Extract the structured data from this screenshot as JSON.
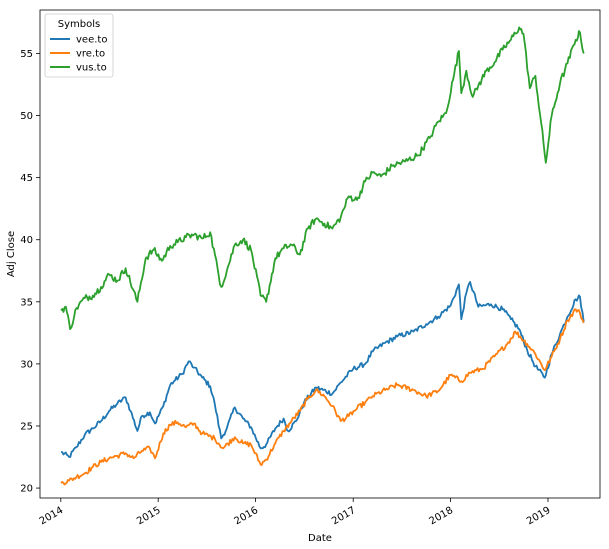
{
  "chart_data": {
    "type": "line",
    "xlabel": "Date",
    "ylabel": "Adj Close",
    "xlim": [
      "2013-10-15",
      "2019-07-15"
    ],
    "ylim": [
      19.2,
      58.5
    ],
    "x_ticks": [
      "2014",
      "2015",
      "2016",
      "2017",
      "2018",
      "2019"
    ],
    "y_ticks": [
      20,
      25,
      30,
      35,
      40,
      45,
      50,
      55
    ],
    "grid": false,
    "legend": {
      "title": "Symbols",
      "position": "top-left"
    },
    "series": [
      {
        "name": "vee.to",
        "color": "#1f77b4",
        "points": [
          [
            "2014-01-02",
            22.9
          ],
          [
            "2014-02-01",
            22.5
          ],
          [
            "2014-03-01",
            23.3
          ],
          [
            "2014-04-01",
            24.3
          ],
          [
            "2014-05-01",
            24.8
          ],
          [
            "2014-06-01",
            25.4
          ],
          [
            "2014-07-01",
            26.2
          ],
          [
            "2014-08-01",
            26.8
          ],
          [
            "2014-09-01",
            27.3
          ],
          [
            "2014-09-20",
            26.2
          ],
          [
            "2014-10-15",
            24.6
          ],
          [
            "2014-11-01",
            25.8
          ],
          [
            "2014-12-01",
            26.1
          ],
          [
            "2014-12-20",
            25.2
          ],
          [
            "2015-01-20",
            26.6
          ],
          [
            "2015-02-15",
            28.3
          ],
          [
            "2015-03-01",
            28.6
          ],
          [
            "2015-04-01",
            29.2
          ],
          [
            "2015-04-25",
            30.2
          ],
          [
            "2015-05-15",
            29.7
          ],
          [
            "2015-06-15",
            28.9
          ],
          [
            "2015-07-15",
            28.2
          ],
          [
            "2015-08-01",
            26.8
          ],
          [
            "2015-08-25",
            24.0
          ],
          [
            "2015-09-15",
            24.8
          ],
          [
            "2015-10-15",
            26.5
          ],
          [
            "2015-11-15",
            25.6
          ],
          [
            "2015-12-15",
            24.9
          ],
          [
            "2016-01-20",
            23.2
          ],
          [
            "2016-02-10",
            23.5
          ],
          [
            "2016-03-15",
            24.8
          ],
          [
            "2016-04-15",
            25.6
          ],
          [
            "2016-05-01",
            24.6
          ],
          [
            "2016-06-01",
            25.4
          ],
          [
            "2016-07-01",
            26.9
          ],
          [
            "2016-08-15",
            28.1
          ],
          [
            "2016-10-15",
            27.6
          ],
          [
            "2016-11-15",
            28.5
          ],
          [
            "2017-01-01",
            29.6
          ],
          [
            "2017-02-15",
            30.0
          ],
          [
            "2017-03-15",
            31.0
          ],
          [
            "2017-05-01",
            31.7
          ],
          [
            "2017-06-15",
            32.2
          ],
          [
            "2017-08-15",
            32.6
          ],
          [
            "2017-10-01",
            33.2
          ],
          [
            "2017-11-15",
            33.8
          ],
          [
            "2018-01-01",
            34.7
          ],
          [
            "2018-02-01",
            36.4
          ],
          [
            "2018-02-10",
            33.6
          ],
          [
            "2018-03-01",
            35.7
          ],
          [
            "2018-03-15",
            36.6
          ],
          [
            "2018-04-15",
            34.6
          ],
          [
            "2018-06-01",
            34.8
          ],
          [
            "2018-07-15",
            34.4
          ],
          [
            "2018-08-15",
            33.6
          ],
          [
            "2018-09-15",
            32.8
          ],
          [
            "2018-10-15",
            31.1
          ],
          [
            "2018-11-15",
            29.8
          ],
          [
            "2018-12-20",
            28.9
          ],
          [
            "2019-01-15",
            30.8
          ],
          [
            "2019-02-15",
            32.4
          ],
          [
            "2019-03-15",
            33.8
          ],
          [
            "2019-04-15",
            35.2
          ],
          [
            "2019-05-01",
            35.4
          ],
          [
            "2019-05-15",
            33.4
          ]
        ]
      },
      {
        "name": "vre.to",
        "color": "#ff7f0e",
        "points": [
          [
            "2014-01-02",
            20.4
          ],
          [
            "2014-02-01",
            20.6
          ],
          [
            "2014-03-01",
            20.9
          ],
          [
            "2014-04-01",
            21.2
          ],
          [
            "2014-05-01",
            21.7
          ],
          [
            "2014-06-01",
            22.1
          ],
          [
            "2014-07-01",
            22.4
          ],
          [
            "2014-08-01",
            22.6
          ],
          [
            "2014-09-01",
            22.8
          ],
          [
            "2014-10-01",
            22.4
          ],
          [
            "2014-11-01",
            23.0
          ],
          [
            "2014-12-01",
            23.2
          ],
          [
            "2014-12-20",
            22.4
          ],
          [
            "2015-01-20",
            24.4
          ],
          [
            "2015-02-15",
            25.1
          ],
          [
            "2015-03-15",
            25.3
          ],
          [
            "2015-04-15",
            24.9
          ],
          [
            "2015-05-15",
            25.2
          ],
          [
            "2015-06-15",
            24.4
          ],
          [
            "2015-08-01",
            24.0
          ],
          [
            "2015-09-01",
            23.2
          ],
          [
            "2015-10-15",
            24.1
          ],
          [
            "2015-11-15",
            23.6
          ],
          [
            "2015-12-15",
            23.5
          ],
          [
            "2016-01-20",
            21.9
          ],
          [
            "2016-02-10",
            22.3
          ],
          [
            "2016-03-15",
            23.6
          ],
          [
            "2016-04-15",
            24.6
          ],
          [
            "2016-05-15",
            25.4
          ],
          [
            "2016-06-15",
            26.2
          ],
          [
            "2016-07-15",
            27.2
          ],
          [
            "2016-08-15",
            27.9
          ],
          [
            "2016-09-15",
            27.4
          ],
          [
            "2016-10-15",
            26.6
          ],
          [
            "2016-11-15",
            25.4
          ],
          [
            "2016-12-15",
            25.8
          ],
          [
            "2017-01-15",
            26.4
          ],
          [
            "2017-02-15",
            26.9
          ],
          [
            "2017-03-15",
            27.4
          ],
          [
            "2017-05-01",
            27.9
          ],
          [
            "2017-06-15",
            28.3
          ],
          [
            "2017-08-15",
            27.9
          ],
          [
            "2017-10-01",
            27.4
          ],
          [
            "2017-11-15",
            27.8
          ],
          [
            "2018-01-01",
            29.1
          ],
          [
            "2018-02-10",
            28.6
          ],
          [
            "2018-03-15",
            29.3
          ],
          [
            "2018-05-01",
            29.6
          ],
          [
            "2018-06-15",
            30.6
          ],
          [
            "2018-08-01",
            31.6
          ],
          [
            "2018-09-01",
            32.6
          ],
          [
            "2018-10-15",
            31.6
          ],
          [
            "2018-11-15",
            30.8
          ],
          [
            "2018-12-20",
            29.5
          ],
          [
            "2019-01-15",
            30.6
          ],
          [
            "2019-02-15",
            32.0
          ],
          [
            "2019-03-15",
            33.5
          ],
          [
            "2019-04-15",
            34.4
          ],
          [
            "2019-05-01",
            34.1
          ],
          [
            "2019-05-15",
            33.3
          ]
        ]
      },
      {
        "name": "vus.to",
        "color": "#2ca02c",
        "points": [
          [
            "2014-01-02",
            34.3
          ],
          [
            "2014-01-20",
            34.6
          ],
          [
            "2014-02-05",
            32.8
          ],
          [
            "2014-03-01",
            34.5
          ],
          [
            "2014-04-01",
            35.3
          ],
          [
            "2014-05-01",
            35.5
          ],
          [
            "2014-06-01",
            36.2
          ],
          [
            "2014-07-01",
            37.2
          ],
          [
            "2014-08-01",
            36.7
          ],
          [
            "2014-09-01",
            37.7
          ],
          [
            "2014-10-15",
            35.0
          ],
          [
            "2014-11-15",
            38.5
          ],
          [
            "2014-12-15",
            39.2
          ],
          [
            "2015-01-15",
            38.3
          ],
          [
            "2015-02-15",
            39.5
          ],
          [
            "2015-03-15",
            39.8
          ],
          [
            "2015-04-15",
            40.2
          ],
          [
            "2015-05-15",
            40.4
          ],
          [
            "2015-06-15",
            40.1
          ],
          [
            "2015-07-15",
            40.6
          ],
          [
            "2015-08-25",
            36.2
          ],
          [
            "2015-09-15",
            37.5
          ],
          [
            "2015-10-15",
            39.6
          ],
          [
            "2015-11-15",
            40.0
          ],
          [
            "2015-12-15",
            39.2
          ],
          [
            "2016-01-20",
            35.5
          ],
          [
            "2016-02-10",
            35.0
          ],
          [
            "2016-03-15",
            38.5
          ],
          [
            "2016-04-15",
            39.3
          ],
          [
            "2016-05-15",
            39.6
          ],
          [
            "2016-06-15",
            38.8
          ],
          [
            "2016-07-15",
            40.9
          ],
          [
            "2016-08-15",
            41.7
          ],
          [
            "2016-09-15",
            41.3
          ],
          [
            "2016-10-15",
            40.9
          ],
          [
            "2016-11-15",
            41.8
          ],
          [
            "2016-12-15",
            43.5
          ],
          [
            "2017-01-15",
            43.2
          ],
          [
            "2017-02-15",
            44.7
          ],
          [
            "2017-03-15",
            45.4
          ],
          [
            "2017-04-15",
            45.1
          ],
          [
            "2017-06-01",
            46.0
          ],
          [
            "2017-07-15",
            46.3
          ],
          [
            "2017-09-01",
            46.8
          ],
          [
            "2017-10-15",
            48.2
          ],
          [
            "2017-11-15",
            49.5
          ],
          [
            "2017-12-15",
            50.2
          ],
          [
            "2018-01-15",
            53.4
          ],
          [
            "2018-02-01",
            55.2
          ],
          [
            "2018-02-10",
            51.8
          ],
          [
            "2018-03-01",
            53.6
          ],
          [
            "2018-03-25",
            51.5
          ],
          [
            "2018-04-15",
            52.4
          ],
          [
            "2018-05-15",
            53.6
          ],
          [
            "2018-06-15",
            54.3
          ],
          [
            "2018-07-15",
            55.3
          ],
          [
            "2018-08-15",
            56.1
          ],
          [
            "2018-09-15",
            57.1
          ],
          [
            "2018-10-01",
            56.6
          ],
          [
            "2018-10-25",
            52.2
          ],
          [
            "2018-11-15",
            53.2
          ],
          [
            "2018-12-24",
            46.2
          ],
          [
            "2019-01-15",
            50.0
          ],
          [
            "2019-02-15",
            52.6
          ],
          [
            "2019-03-15",
            54.2
          ],
          [
            "2019-04-15",
            56.1
          ],
          [
            "2019-05-01",
            56.7
          ],
          [
            "2019-05-15",
            55.0
          ]
        ]
      }
    ]
  }
}
